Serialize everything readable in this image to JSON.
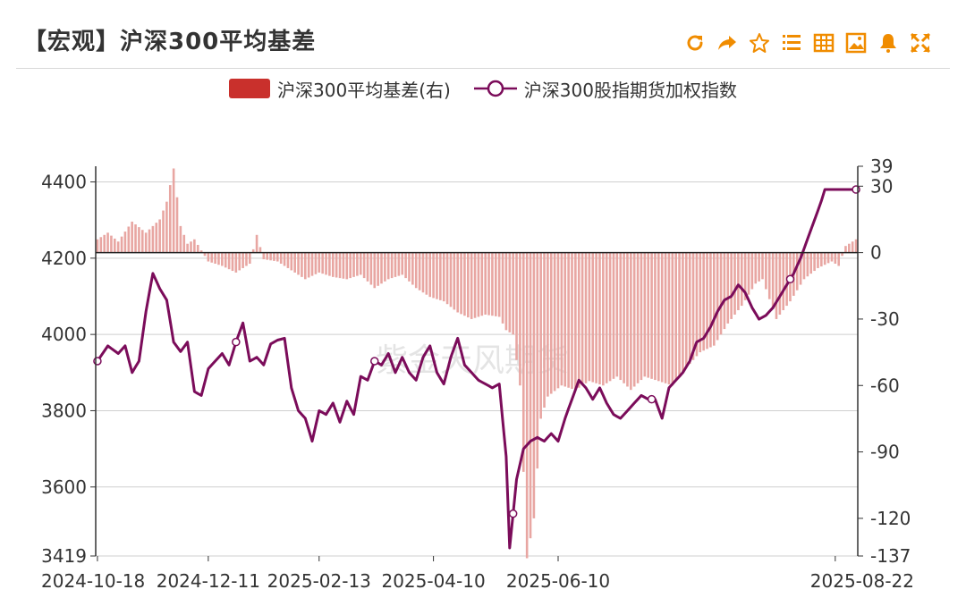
{
  "title": "【宏观】沪深300平均基差",
  "toolbar": [
    {
      "name": "refresh-icon"
    },
    {
      "name": "share-icon"
    },
    {
      "name": "star-icon"
    },
    {
      "name": "list-icon"
    },
    {
      "name": "table-icon"
    },
    {
      "name": "image-icon"
    },
    {
      "name": "bell-icon"
    },
    {
      "name": "fullscreen-icon"
    }
  ],
  "colors": {
    "accent": "#f08c00",
    "bar": "#e8a6a2",
    "bar_legend": "#c9302c",
    "line": "#7b0c5a"
  },
  "legend": {
    "bar_label": "沪深300平均基差(右)",
    "line_label": "沪深300股指期货加权指数"
  },
  "watermark": "紫金天风期货",
  "chart_data": {
    "type": "bar+line",
    "x_ticks": [
      "2024-10-18",
      "2024-12-11",
      "2025-02-13",
      "2025-04-10",
      "2025-06-10",
      "2025-08-22"
    ],
    "y_left": {
      "ticks": [
        4400,
        4200,
        4000,
        3800,
        3600,
        3419
      ],
      "range": [
        3419,
        4441
      ]
    },
    "y_right": {
      "ticks": [
        39,
        30,
        0,
        -30,
        -60,
        -90,
        -120,
        -137
      ],
      "range": [
        -137,
        39
      ]
    },
    "series": [
      {
        "name": "沪深300平均基差(右)",
        "type": "bar",
        "axis": "right",
        "anchors": [
          [
            0,
            6
          ],
          [
            3,
            9
          ],
          [
            6,
            5
          ],
          [
            10,
            14
          ],
          [
            14,
            9
          ],
          [
            18,
            15
          ],
          [
            20,
            23
          ],
          [
            22,
            38
          ],
          [
            24,
            12
          ],
          [
            26,
            4
          ],
          [
            28,
            6
          ],
          [
            30,
            1
          ],
          [
            32,
            -4
          ],
          [
            36,
            -6
          ],
          [
            40,
            -9
          ],
          [
            44,
            -5
          ],
          [
            46,
            8
          ],
          [
            48,
            -3
          ],
          [
            52,
            -4
          ],
          [
            56,
            -8
          ],
          [
            60,
            -12
          ],
          [
            64,
            -9
          ],
          [
            68,
            -11
          ],
          [
            72,
            -12
          ],
          [
            76,
            -10
          ],
          [
            80,
            -16
          ],
          [
            84,
            -12
          ],
          [
            88,
            -10
          ],
          [
            92,
            -16
          ],
          [
            96,
            -20
          ],
          [
            100,
            -22
          ],
          [
            104,
            -27
          ],
          [
            108,
            -30
          ],
          [
            112,
            -28
          ],
          [
            116,
            -29
          ],
          [
            118,
            -35
          ],
          [
            120,
            -37
          ],
          [
            122,
            -60
          ],
          [
            124,
            -138
          ],
          [
            126,
            -120
          ],
          [
            128,
            -75
          ],
          [
            130,
            -65
          ],
          [
            134,
            -60
          ],
          [
            138,
            -62
          ],
          [
            142,
            -58
          ],
          [
            146,
            -60
          ],
          [
            150,
            -56
          ],
          [
            154,
            -62
          ],
          [
            158,
            -56
          ],
          [
            162,
            -58
          ],
          [
            166,
            -60
          ],
          [
            170,
            -52
          ],
          [
            174,
            -45
          ],
          [
            178,
            -42
          ],
          [
            182,
            -32
          ],
          [
            186,
            -24
          ],
          [
            190,
            -14
          ],
          [
            192,
            -12
          ],
          [
            196,
            -30
          ],
          [
            200,
            -22
          ],
          [
            204,
            -12
          ],
          [
            208,
            -7
          ],
          [
            212,
            -4
          ],
          [
            214,
            -6
          ],
          [
            216,
            3
          ],
          [
            219,
            6
          ]
        ]
      },
      {
        "name": "沪深300股指期货加权指数",
        "type": "line",
        "axis": "left",
        "anchors": [
          [
            0,
            3930
          ],
          [
            3,
            3970
          ],
          [
            6,
            3950
          ],
          [
            8,
            3970
          ],
          [
            10,
            3900
          ],
          [
            12,
            3930
          ],
          [
            14,
            4060
          ],
          [
            16,
            4160
          ],
          [
            18,
            4120
          ],
          [
            20,
            4090
          ],
          [
            22,
            3980
          ],
          [
            24,
            3955
          ],
          [
            26,
            3980
          ],
          [
            28,
            3850
          ],
          [
            30,
            3840
          ],
          [
            32,
            3910
          ],
          [
            34,
            3930
          ],
          [
            36,
            3950
          ],
          [
            38,
            3920
          ],
          [
            40,
            3980
          ],
          [
            42,
            4030
          ],
          [
            44,
            3930
          ],
          [
            46,
            3940
          ],
          [
            48,
            3920
          ],
          [
            50,
            3975
          ],
          [
            52,
            3985
          ],
          [
            54,
            3990
          ],
          [
            56,
            3860
          ],
          [
            58,
            3800
          ],
          [
            60,
            3780
          ],
          [
            62,
            3720
          ],
          [
            64,
            3800
          ],
          [
            66,
            3790
          ],
          [
            68,
            3820
          ],
          [
            70,
            3770
          ],
          [
            72,
            3825
          ],
          [
            74,
            3790
          ],
          [
            76,
            3890
          ],
          [
            78,
            3880
          ],
          [
            80,
            3930
          ],
          [
            82,
            3920
          ],
          [
            84,
            3950
          ],
          [
            86,
            3900
          ],
          [
            88,
            3940
          ],
          [
            90,
            3900
          ],
          [
            92,
            3880
          ],
          [
            94,
            3940
          ],
          [
            96,
            3970
          ],
          [
            98,
            3900
          ],
          [
            100,
            3870
          ],
          [
            102,
            3940
          ],
          [
            104,
            3990
          ],
          [
            106,
            3920
          ],
          [
            108,
            3900
          ],
          [
            110,
            3880
          ],
          [
            112,
            3870
          ],
          [
            114,
            3860
          ],
          [
            116,
            3870
          ],
          [
            118,
            3680
          ],
          [
            119,
            3440
          ],
          [
            121,
            3620
          ],
          [
            123,
            3700
          ],
          [
            125,
            3720
          ],
          [
            127,
            3730
          ],
          [
            129,
            3720
          ],
          [
            131,
            3740
          ],
          [
            133,
            3720
          ],
          [
            135,
            3780
          ],
          [
            137,
            3830
          ],
          [
            139,
            3880
          ],
          [
            141,
            3860
          ],
          [
            143,
            3830
          ],
          [
            145,
            3860
          ],
          [
            147,
            3820
          ],
          [
            149,
            3790
          ],
          [
            151,
            3780
          ],
          [
            153,
            3800
          ],
          [
            155,
            3820
          ],
          [
            157,
            3840
          ],
          [
            159,
            3830
          ],
          [
            161,
            3830
          ],
          [
            163,
            3780
          ],
          [
            165,
            3860
          ],
          [
            167,
            3880
          ],
          [
            169,
            3900
          ],
          [
            171,
            3930
          ],
          [
            173,
            3980
          ],
          [
            175,
            3990
          ],
          [
            177,
            4020
          ],
          [
            179,
            4060
          ],
          [
            181,
            4090
          ],
          [
            183,
            4100
          ],
          [
            185,
            4130
          ],
          [
            187,
            4110
          ],
          [
            189,
            4070
          ],
          [
            191,
            4040
          ],
          [
            193,
            4050
          ],
          [
            195,
            4070
          ],
          [
            197,
            4100
          ],
          [
            199,
            4130
          ],
          [
            201,
            4160
          ],
          [
            203,
            4200
          ],
          [
            205,
            4250
          ],
          [
            207,
            4300
          ],
          [
            209,
            4350
          ],
          [
            210,
            4380
          ]
        ]
      }
    ]
  }
}
